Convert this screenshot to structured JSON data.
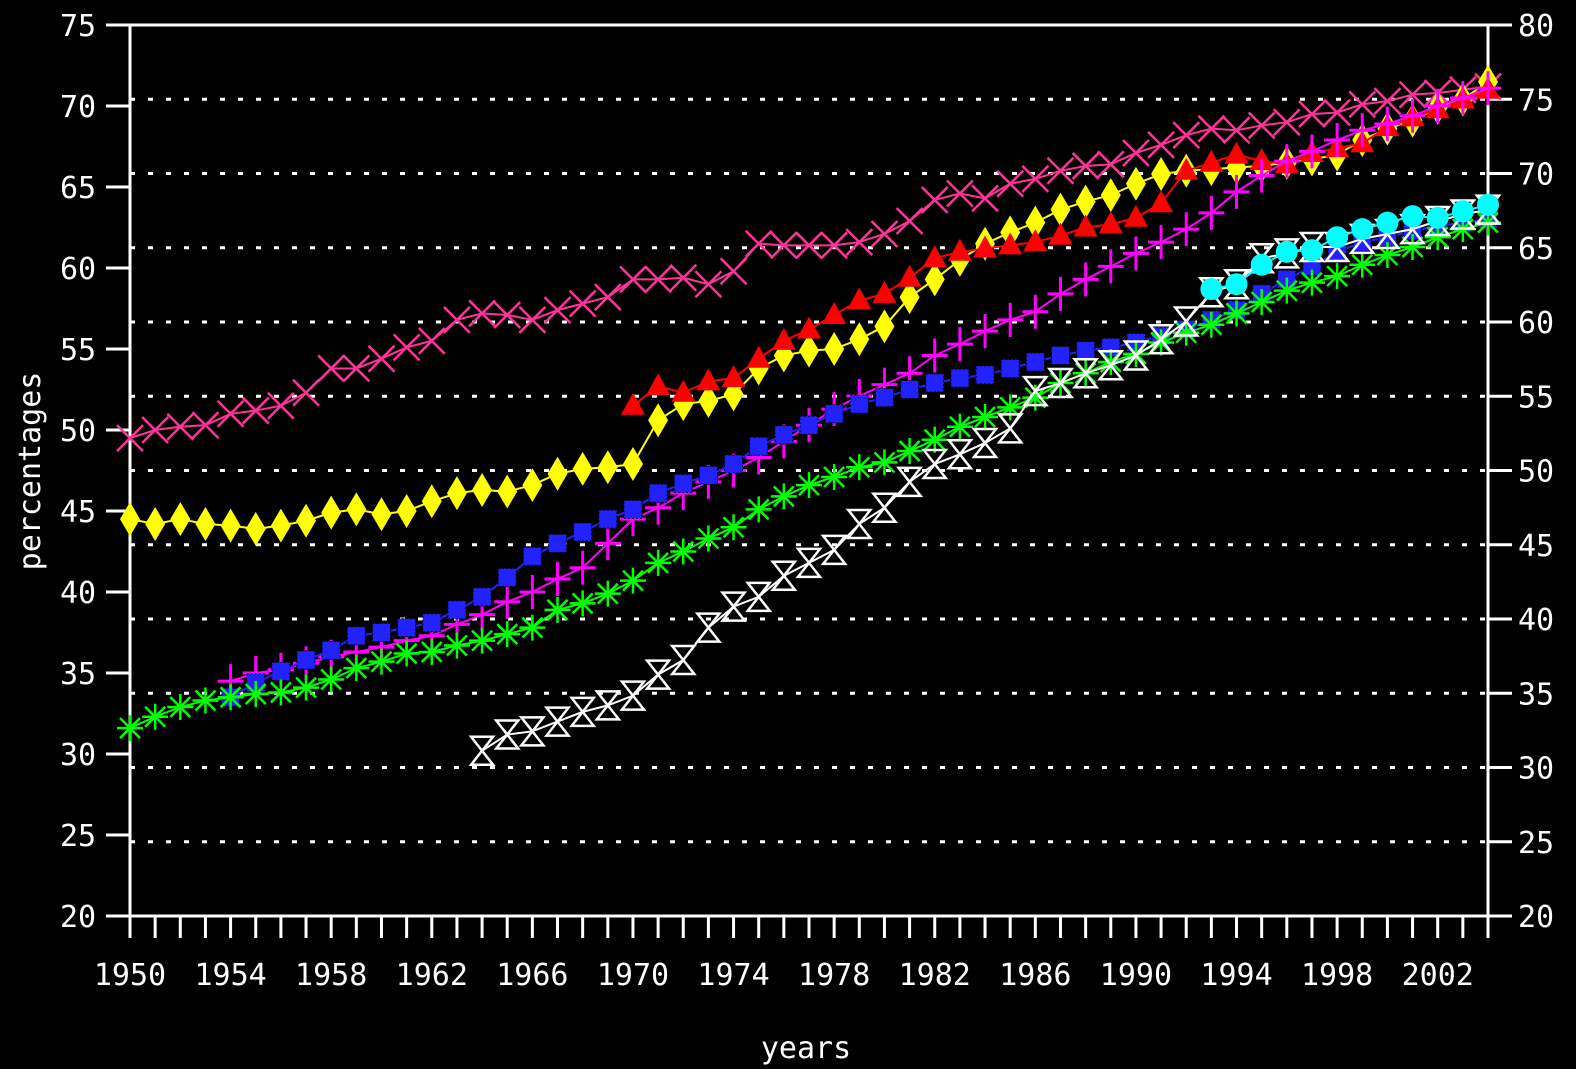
{
  "chart_data": {
    "type": "line",
    "xlabel": "years",
    "ylabel": "percentages",
    "xlim": [
      1950,
      2004
    ],
    "ylim": [
      20,
      75
    ],
    "y2lim": [
      20,
      80
    ],
    "x_ticks": [
      1950,
      1954,
      1958,
      1962,
      1966,
      1970,
      1974,
      1978,
      1982,
      1986,
      1990,
      1994,
      1998,
      2002
    ],
    "y_ticks": [
      20,
      25,
      30,
      35,
      40,
      45,
      50,
      55,
      60,
      65,
      70,
      75
    ],
    "y2_ticks": [
      20,
      25,
      30,
      35,
      40,
      45,
      50,
      55,
      60,
      65,
      70,
      75,
      80
    ],
    "grid": "dashed horizontal lines at right-axis ticks",
    "series": [
      {
        "color": "#ff3399",
        "marker": "x",
        "x": [
          1950,
          1951,
          1952,
          1953,
          1954,
          1955,
          1956,
          1957,
          1958,
          1959,
          1960,
          1961,
          1962,
          1963,
          1964,
          1965,
          1966,
          1967,
          1968,
          1969,
          1970,
          1971,
          1972,
          1973,
          1974,
          1975,
          1976,
          1977,
          1978,
          1979,
          1980,
          1981,
          1982,
          1983,
          1984,
          1985,
          1986,
          1987,
          1988,
          1989,
          1990,
          1991,
          1992,
          1993,
          1994,
          1995,
          1996,
          1997,
          1998,
          1999,
          2000,
          2001,
          2002,
          2003,
          2004
        ],
        "y": [
          49.5,
          50.0,
          50.2,
          50.3,
          51.0,
          51.2,
          51.5,
          52.3,
          53.8,
          53.8,
          54.4,
          55.1,
          55.5,
          56.8,
          57.2,
          57.1,
          56.8,
          57.4,
          57.8,
          58.2,
          59.3,
          59.3,
          59.4,
          59.0,
          59.8,
          61.5,
          61.4,
          61.4,
          61.4,
          61.6,
          62.1,
          62.9,
          64.2,
          64.6,
          64.3,
          65.2,
          65.5,
          66.0,
          66.3,
          66.4,
          67.1,
          67.6,
          68.2,
          68.6,
          68.5,
          68.8,
          69.0,
          69.5,
          69.6,
          70.1,
          70.3,
          70.7,
          70.8,
          71.0,
          71.2
        ]
      },
      {
        "color": "#ffff00",
        "marker": "diamond",
        "x": [
          1950,
          1951,
          1952,
          1953,
          1954,
          1955,
          1956,
          1957,
          1958,
          1959,
          1960,
          1961,
          1962,
          1963,
          1964,
          1965,
          1966,
          1967,
          1968,
          1969,
          1970,
          1971,
          1972,
          1973,
          1974,
          1975,
          1976,
          1977,
          1978,
          1979,
          1980,
          1981,
          1982,
          1983,
          1984,
          1985,
          1986,
          1987,
          1988,
          1989,
          1990,
          1991,
          1992,
          1993,
          1994,
          1995,
          1996,
          1997,
          1998,
          1999,
          2000,
          2001,
          2002,
          2003,
          2004
        ],
        "y": [
          44.5,
          44.2,
          44.5,
          44.2,
          44.1,
          43.9,
          44.1,
          44.4,
          44.9,
          45.1,
          44.8,
          45.0,
          45.6,
          46.1,
          46.3,
          46.2,
          46.6,
          47.3,
          47.6,
          47.7,
          47.9,
          50.6,
          51.6,
          51.8,
          52.2,
          53.8,
          54.6,
          54.9,
          55.0,
          55.6,
          56.4,
          58.2,
          59.3,
          60.5,
          61.5,
          62.2,
          62.8,
          63.6,
          64.1,
          64.5,
          65.2,
          65.8,
          66.0,
          66.1,
          66.2,
          66.3,
          66.5,
          66.7,
          67.0,
          67.9,
          68.6,
          69.1,
          69.9,
          70.4,
          71.5
        ]
      },
      {
        "color": "#ff0000",
        "marker": "triangle",
        "x": [
          1970,
          1971,
          1972,
          1973,
          1974,
          1975,
          1976,
          1977,
          1978,
          1979,
          1980,
          1981,
          1982,
          1983,
          1984,
          1985,
          1986,
          1987,
          1988,
          1989,
          1990,
          1991,
          1992,
          1993,
          1994,
          1995,
          1996,
          1997,
          1998,
          1999,
          2000,
          2001,
          2002,
          2003,
          2004
        ],
        "y": [
          51.5,
          52.7,
          52.3,
          53.0,
          53.2,
          54.4,
          55.5,
          56.2,
          57.1,
          58.0,
          58.4,
          59.4,
          60.6,
          61.0,
          61.2,
          61.4,
          61.6,
          62.0,
          62.5,
          62.7,
          63.1,
          64.0,
          66.0,
          66.5,
          67.0,
          66.6,
          66.4,
          67.1,
          67.4,
          67.7,
          68.7,
          69.3,
          69.8,
          70.4,
          71.0
        ]
      },
      {
        "color": "#ff00ff",
        "marker": "plus",
        "x": [
          1954,
          1955,
          1956,
          1957,
          1958,
          1959,
          1960,
          1961,
          1962,
          1963,
          1964,
          1965,
          1966,
          1967,
          1968,
          1969,
          1970,
          1971,
          1972,
          1973,
          1974,
          1975,
          1976,
          1977,
          1978,
          1979,
          1980,
          1981,
          1982,
          1983,
          1984,
          1985,
          1986,
          1987,
          1988,
          1989,
          1990,
          1991,
          1992,
          1993,
          1994,
          1995,
          1996,
          1997,
          1998,
          1999,
          2000,
          2001,
          2002,
          2003,
          2004
        ],
        "y": [
          34.5,
          35.0,
          35.2,
          35.6,
          36.0,
          36.3,
          36.6,
          37.0,
          37.3,
          38.0,
          38.6,
          39.4,
          40.0,
          40.8,
          41.5,
          43.0,
          44.5,
          45.2,
          46.1,
          46.8,
          47.5,
          48.3,
          49.3,
          50.3,
          51.3,
          52.1,
          52.8,
          53.5,
          54.6,
          55.3,
          56.1,
          56.8,
          57.3,
          58.4,
          59.3,
          60.1,
          60.9,
          61.6,
          62.4,
          63.4,
          64.7,
          65.7,
          66.6,
          67.2,
          67.9,
          68.5,
          68.9,
          69.4,
          70.0,
          70.5,
          71.1
        ]
      },
      {
        "color": "#2222ff",
        "marker": "square",
        "x": [
          1954,
          1955,
          1956,
          1957,
          1958,
          1959,
          1960,
          1961,
          1962,
          1963,
          1964,
          1965,
          1966,
          1967,
          1968,
          1969,
          1970,
          1971,
          1972,
          1973,
          1974,
          1975,
          1976,
          1977,
          1978,
          1979,
          1980,
          1981,
          1982,
          1983,
          1984,
          1985,
          1986,
          1987,
          1988,
          1989,
          1990,
          1991,
          1992,
          1993,
          1994,
          1995,
          1996,
          1997,
          1998,
          1999,
          2000,
          2001,
          2002,
          2003,
          2004
        ],
        "y": [
          33.5,
          34.4,
          35.1,
          35.8,
          36.4,
          37.3,
          37.5,
          37.8,
          38.1,
          38.9,
          39.7,
          40.9,
          42.2,
          43.0,
          43.7,
          44.5,
          45.1,
          46.1,
          46.7,
          47.2,
          47.9,
          49.0,
          49.7,
          50.3,
          51.0,
          51.6,
          52.0,
          52.5,
          52.9,
          53.2,
          53.4,
          53.8,
          54.2,
          54.6,
          54.9,
          55.1,
          55.4,
          55.8,
          56.2,
          56.8,
          57.4,
          58.4,
          59.3,
          60.1,
          61.0,
          61.6,
          61.9,
          62.3,
          62.6,
          62.8,
          63.0
        ]
      },
      {
        "color": "#00ff00",
        "marker": "asterisk",
        "x": [
          1950,
          1951,
          1952,
          1953,
          1954,
          1955,
          1956,
          1957,
          1958,
          1959,
          1960,
          1961,
          1962,
          1963,
          1964,
          1965,
          1966,
          1967,
          1968,
          1969,
          1970,
          1971,
          1972,
          1973,
          1974,
          1975,
          1976,
          1977,
          1978,
          1979,
          1980,
          1981,
          1982,
          1983,
          1984,
          1985,
          1986,
          1987,
          1988,
          1989,
          1990,
          1991,
          1992,
          1993,
          1994,
          1995,
          1996,
          1997,
          1998,
          1999,
          2000,
          2001,
          2002,
          2003,
          2004
        ],
        "y": [
          31.6,
          32.3,
          32.9,
          33.3,
          33.5,
          33.7,
          33.8,
          34.1,
          34.6,
          35.3,
          35.7,
          36.2,
          36.3,
          36.7,
          37.0,
          37.4,
          37.8,
          38.9,
          39.3,
          39.9,
          40.7,
          41.8,
          42.5,
          43.3,
          44.0,
          45.1,
          45.9,
          46.6,
          47.1,
          47.7,
          48.0,
          48.7,
          49.4,
          50.2,
          50.8,
          51.4,
          52.0,
          52.9,
          53.5,
          54.2,
          54.7,
          55.4,
          56.0,
          56.5,
          57.2,
          57.9,
          58.6,
          59.1,
          59.5,
          60.2,
          60.8,
          61.3,
          61.9,
          62.4,
          62.8
        ]
      },
      {
        "color": "#ffffff",
        "marker": "hourglass",
        "x": [
          1964,
          1965,
          1966,
          1967,
          1968,
          1969,
          1970,
          1971,
          1972,
          1973,
          1974,
          1975,
          1976,
          1977,
          1978,
          1979,
          1980,
          1981,
          1982,
          1983,
          1984,
          1985,
          1986,
          1987,
          1988,
          1989,
          1990,
          1991,
          1992,
          1993,
          1994,
          1995,
          1996,
          1997,
          1998,
          1999,
          2000,
          2001,
          2002,
          2003,
          2004
        ],
        "y": [
          30.2,
          31.2,
          31.4,
          32.0,
          32.6,
          33.0,
          33.6,
          34.9,
          35.8,
          37.8,
          39.1,
          39.7,
          41.0,
          41.8,
          42.6,
          44.2,
          45.2,
          46.8,
          47.9,
          48.5,
          49.2,
          50.1,
          52.4,
          52.9,
          53.5,
          54.0,
          54.6,
          55.6,
          56.7,
          58.5,
          59.0,
          60.6,
          60.9,
          61.3,
          61.3,
          61.8,
          62.1,
          62.4,
          62.9,
          63.3,
          63.6
        ]
      },
      {
        "color": "#00ffff",
        "marker": "circle",
        "x": [
          1993,
          1994,
          1995,
          1996,
          1997,
          1998,
          1999,
          2000,
          2001,
          2002,
          2003,
          2004
        ],
        "y": [
          58.7,
          59.0,
          60.2,
          61.0,
          61.1,
          61.9,
          62.4,
          62.8,
          63.2,
          63.1,
          63.5,
          63.9
        ]
      }
    ]
  }
}
